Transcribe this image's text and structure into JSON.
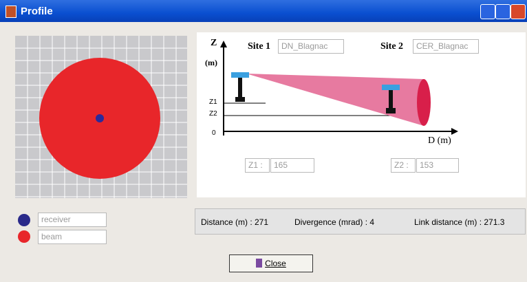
{
  "window": {
    "title": "Profile"
  },
  "legend": [
    {
      "label": "receiver"
    },
    {
      "label": "beam"
    }
  ],
  "diagram": {
    "z_axis": "Z",
    "z_unit": "(m)",
    "site1_label": "Site 1",
    "site1_value": "DN_Blagnac",
    "site2_label": "Site 2",
    "site2_value": "CER_Blagnac",
    "z1_tick": "Z1",
    "z2_tick": "Z2",
    "origin": "0",
    "d_axis": "D (m)",
    "z1_label": "Z1 :",
    "z1_value": "165",
    "z2_label": "Z2 :",
    "z2_value": "153"
  },
  "info": [
    "Distance (m) : 271",
    "Divergence (mrad) : 4",
    "Link distance (m) : 271.3"
  ],
  "button": {
    "label": "Close"
  }
}
